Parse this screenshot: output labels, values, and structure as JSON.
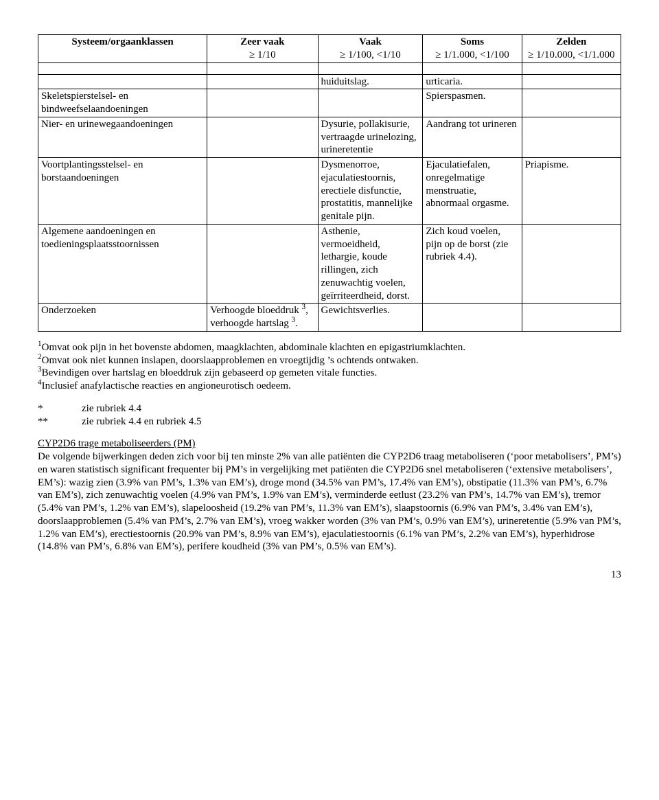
{
  "table": {
    "headers": [
      {
        "title": "Systeem/orgaanklassen",
        "sub": ""
      },
      {
        "title": "Zeer vaak",
        "sub": "≥ 1/10"
      },
      {
        "title": "Vaak",
        "sub": "≥ 1/100, <1/10"
      },
      {
        "title": "Soms",
        "sub": "≥ 1/1.000, <1/100"
      },
      {
        "title": "Zelden",
        "sub": "≥ 1/10.000, <1/1.000"
      }
    ],
    "rows": [
      {
        "c1": "",
        "c2": "",
        "c3": "huiduitslag.",
        "c4": "urticaria.",
        "c5": ""
      },
      {
        "c1": "Skeletspierstelsel- en bindweefselaandoeningen",
        "c2": "",
        "c3": "",
        "c4": "Spierspasmen.",
        "c5": ""
      },
      {
        "c1": "Nier- en urinewegaandoeningen",
        "c2": "",
        "c3": "Dysurie, pollakisurie, vertraagde urinelozing, urineretentie",
        "c4": "Aandrang tot urineren",
        "c5": ""
      },
      {
        "c1": "Voortplantingsstelsel- en borstaandoeningen",
        "c2": "",
        "c3": "Dysmenorroe, ejaculatiestoornis, erectiele disfunctie, prostatitis, mannelijke genitale pijn.",
        "c4": "Ejaculatiefalen, onregelmatige menstruatie, abnormaal orgasme.",
        "c5": "Priapisme."
      },
      {
        "c1": "Algemene aandoeningen en toedieningsplaatsstoornissen",
        "c2": "",
        "c3": "Asthenie, vermoeidheid, lethargie, koude rillingen, zich zenuwachtig voelen, geïrriteerdheid, dorst.",
        "c4": "Zich koud voelen, pijn op de borst (zie rubriek 4.4).",
        "c5": ""
      },
      {
        "c1": "Onderzoeken",
        "c2_html": "Verhoogde bloeddruk <sup>3</sup>, verhoogde hartslag <sup>3</sup>.",
        "c3": "Gewichtsverlies.",
        "c4": "",
        "c5": ""
      }
    ]
  },
  "footnotes": {
    "f1": "Omvat ook pijn in het bovenste abdomen, maagklachten, abdominale klachten en epigastriumklachten.",
    "f2": "Omvat ook niet kunnen inslapen, doorslaapproblemen en vroegtijdig ’s ochtends ontwaken.",
    "f3": "Bevindigen over hartslag en bloeddruk zijn gebaseerd op gemeten vitale functies.",
    "f4": "Inclusief anafylactische reacties en angioneurotisch oedeem."
  },
  "legend": {
    "star1_sym": "*",
    "star1_txt": "zie rubriek 4.4",
    "star2_sym": "**",
    "star2_txt": "zie rubriek 4.4 en rubriek 4.5"
  },
  "section": {
    "heading": "CYP2D6 trage metaboliseerders (PM)",
    "body": "De volgende bijwerkingen deden zich voor bij ten minste 2% van alle patiënten die CYP2D6 traag metaboliseren (‘poor metabolisers’, PM’s) en waren statistisch significant frequenter bij PM’s in vergelijking met patiënten die CYP2D6 snel metaboliseren (‘extensive metabolisers’, EM’s): wazig zien (3.9% van PM’s, 1.3% van EM’s), droge mond (34.5% van PM’s, 17.4% van EM’s), obstipatie (11.3% van PM’s, 6.7% van EM’s), zich zenuwachtig voelen (4.9% van PM’s, 1.9% van EM’s), verminderde eetlust (23.2% van PM’s, 14.7% van EM’s), tremor (5.4% van PM’s, 1.2% van EM’s), slapeloosheid (19.2% van PM’s, 11.3% van EM’s), slaapstoornis (6.9% van PM’s, 3.4% van EM’s), doorslaapproblemen (5.4% van PM’s, 2.7% van EM’s), vroeg wakker worden (3% van PM’s, 0.9% van EM’s), urineretentie (5.9% van PM’s, 1.2% van EM’s), erectiestoornis (20.9% van PM’s, 8.9% van EM’s), ejaculatiestoornis (6.1% van PM’s, 2.2% van EM’s), hyperhidrose (14.8% van PM’s, 6.8% van EM’s), perifere koudheid (3% van PM’s, 0.5% van EM’s)."
  },
  "page_number": "13"
}
